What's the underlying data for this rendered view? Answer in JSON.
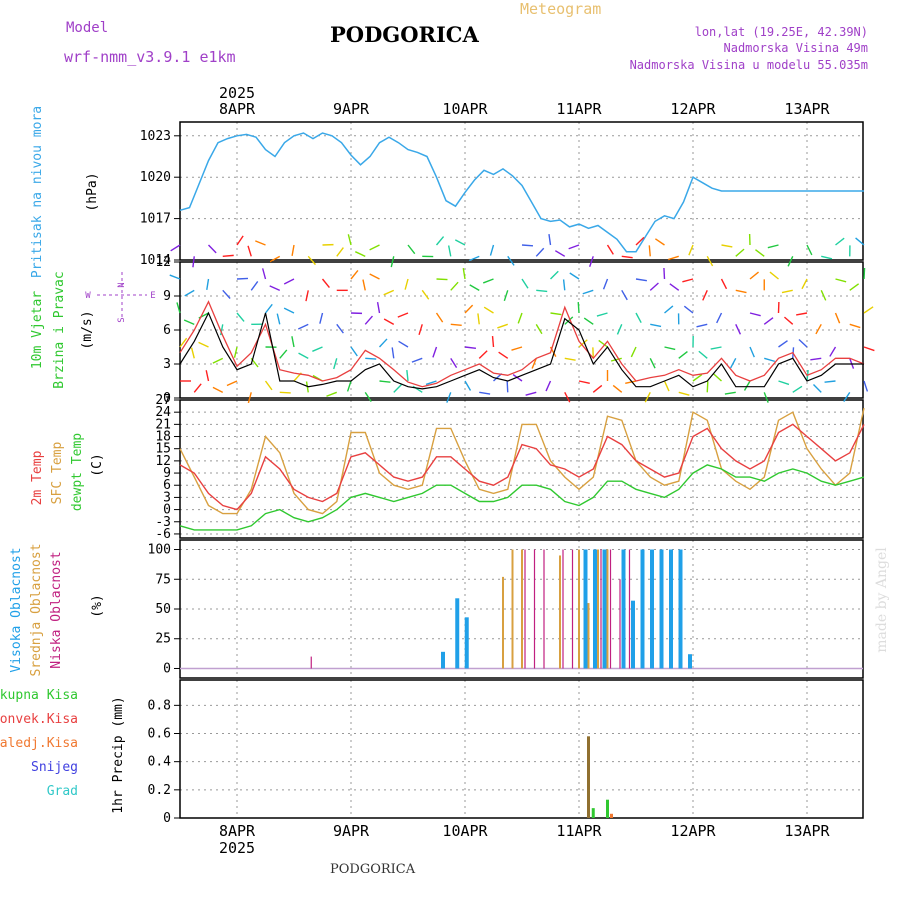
{
  "header": {
    "model_label": "Model",
    "model_name": "wrf-nmm_v3.9.1  e1km",
    "station": "PODGORICA",
    "meteogram": "Meteogram",
    "lonlat": "lon,lat (19.25E, 42.39N)",
    "altitude": "Nadmorska Visina 49m",
    "model_altitude": "Nadmorska Visina u modelu 55.035m",
    "footer_station": "PODGORICA",
    "watermark": "made by Angel"
  },
  "time_axis": {
    "year": "2025",
    "days": [
      "8APR",
      "9APR",
      "10APR",
      "11APR",
      "12APR",
      "13APR"
    ]
  },
  "colors": {
    "pressure": "#3aa8e8",
    "temp2m": "#e84040",
    "sfc_temp": "#d8a040",
    "dewpt": "#30c830",
    "high_cloud": "#20a0e8",
    "mid_cloud": "#d8a040",
    "low_cloud": "#c02080",
    "ukupna": "#30c830",
    "konvek": "#e84040",
    "zaledj": "#f07830",
    "snijeg": "#4040e0",
    "grad": "#30c8c8",
    "model_label": "#a040c8",
    "meteogram": "#e8c070"
  },
  "panels": {
    "pressure": {
      "ylabel1": "Pritisak na nivou mora",
      "ylabel2": "(hPa)",
      "ticks": [
        "1014",
        "1017",
        "1020",
        "1023"
      ]
    },
    "wind": {
      "ylabel1": "10m Vjetar",
      "ylabel2": "Brzina i Pravac",
      "ylabel3": "(m/s)",
      "ticks": [
        "0",
        "3",
        "6",
        "9",
        "12"
      ],
      "compass": {
        "n": "N",
        "s": "S",
        "e": "E",
        "w": "W"
      }
    },
    "temp": {
      "ylabel1": "2m Temp",
      "ylabel2": "SFC Temp",
      "ylabel3": "dewpt Temp",
      "ylabel4": "(C)",
      "ticks": [
        "-6",
        "-3",
        "0",
        "3",
        "6",
        "9",
        "12",
        "15",
        "18",
        "21",
        "24",
        "27"
      ]
    },
    "cloud": {
      "ylabel1": "Visoka Oblacnost",
      "ylabel2": "Srednja Oblacnost",
      "ylabel3": "Niska Oblacnost",
      "ylabel4": "(%)",
      "ticks": [
        "0",
        "25",
        "50",
        "75",
        "100"
      ]
    },
    "precip": {
      "legend": [
        "Ukupna Kisa",
        "Konvek.Kisa",
        "Zaledj.Kisa",
        "Snijeg",
        "Grad"
      ],
      "ylabel": "1hr Precip (mm)",
      "ticks": [
        "0",
        "0.2",
        "0.4",
        "0.6",
        "0.8"
      ]
    }
  },
  "chart_data": [
    {
      "type": "line",
      "title": "Pritisak na nivou mora",
      "ylabel": "(hPa)",
      "ylim": [
        1014,
        1024
      ],
      "x_hours": [
        0,
        2,
        4,
        6,
        8,
        10,
        12,
        14,
        16,
        18,
        20,
        22,
        24,
        26,
        28,
        30,
        32,
        34,
        36,
        38,
        40,
        42,
        44,
        46,
        48,
        50,
        52,
        54,
        56,
        58,
        60,
        62,
        64,
        66,
        68,
        70,
        72,
        74,
        76,
        78,
        80,
        82,
        84,
        86,
        88,
        90,
        92,
        94,
        96,
        98,
        100,
        102,
        104,
        106,
        108,
        110,
        112,
        114,
        116,
        118,
        120,
        122,
        124,
        126,
        128,
        130,
        132,
        134,
        136,
        138,
        140,
        142,
        144
      ],
      "series": [
        {
          "values": [
            1017.6,
            1017.8,
            1019.5,
            1021.2,
            1022.5,
            1022.8,
            1023.0,
            1023.1,
            1022.9,
            1022.0,
            1021.5,
            1022.5,
            1023.0,
            1023.2,
            1022.8,
            1023.2,
            1023.0,
            1022.5,
            1021.6,
            1020.9,
            1021.5,
            1022.5,
            1022.9,
            1022.5,
            1022.0,
            1021.8,
            1021.5,
            1020.0,
            1018.3,
            1017.9,
            1018.9,
            1019.8,
            1020.5,
            1020.2,
            1020.6,
            1020.1,
            1019.4,
            1018.2,
            1017.0,
            1016.8,
            1016.9,
            1016.4,
            1016.6,
            1016.3,
            1016.5,
            1016.0,
            1015.5,
            1014.6,
            1014.6,
            1015.7,
            1016.8,
            1017.2,
            1017.0,
            1018.2,
            1020.0,
            1019.6,
            1019.2,
            1019.0,
            1019.0,
            1019.0,
            1019.0,
            1019.0,
            1019.0,
            1019.0,
            1019.0,
            1019.0,
            1019.0,
            1019.0,
            1019.0,
            1019.0,
            1019.0,
            1019.0,
            1019.0
          ]
        }
      ]
    },
    {
      "type": "line",
      "title": "10m Vjetar Brzina i Pravac",
      "ylabel": "(m/s)",
      "ylim": [
        0,
        12
      ],
      "x_hours": [
        0,
        3,
        6,
        9,
        12,
        15,
        18,
        21,
        24,
        27,
        30,
        33,
        36,
        39,
        42,
        45,
        48,
        51,
        54,
        57,
        60,
        63,
        66,
        69,
        72,
        75,
        78,
        81,
        84,
        87,
        90,
        93,
        96,
        99,
        102,
        105,
        108,
        111,
        114,
        117,
        120,
        123,
        126,
        129,
        132,
        135,
        138,
        141,
        144
      ],
      "series": [
        {
          "values": [
            4.0,
            6.0,
            8.5,
            5.5,
            2.8,
            4.0,
            6.5,
            2.5,
            2.2,
            2.0,
            1.5,
            1.8,
            2.5,
            4.2,
            3.5,
            2.5,
            1.4,
            1.0,
            1.3,
            2.0,
            2.5,
            3.0,
            2.2,
            2.0,
            2.5,
            3.5,
            4.0,
            8.0,
            5.0,
            3.5,
            5.0,
            3.0,
            1.5,
            1.8,
            2.0,
            2.5,
            2.0,
            2.2,
            3.5,
            2.0,
            1.5,
            2.0,
            3.5,
            4.0,
            2.0,
            2.5,
            3.5,
            3.5,
            3.0
          ]
        },
        {
          "values": [
            3.0,
            5.0,
            7.5,
            4.5,
            2.5,
            3.0,
            7.5,
            1.5,
            1.5,
            1.0,
            1.2,
            1.5,
            1.5,
            2.5,
            3.0,
            1.5,
            1.0,
            0.8,
            1.0,
            1.5,
            2.0,
            2.5,
            1.8,
            1.5,
            2.0,
            2.5,
            3.0,
            7.0,
            6.0,
            3.0,
            4.5,
            2.5,
            1.0,
            1.0,
            1.5,
            2.0,
            1.0,
            1.5,
            3.0,
            1.0,
            1.0,
            1.0,
            3.0,
            3.5,
            1.5,
            2.0,
            3.0,
            3.0,
            3.0
          ]
        }
      ]
    },
    {
      "type": "line",
      "ylabel": "(C)",
      "ylim": [
        -7,
        27
      ],
      "x_hours": [
        0,
        3,
        6,
        9,
        12,
        15,
        18,
        21,
        24,
        27,
        30,
        33,
        36,
        39,
        42,
        45,
        48,
        51,
        54,
        57,
        60,
        63,
        66,
        69,
        72,
        75,
        78,
        81,
        84,
        87,
        90,
        93,
        96,
        99,
        102,
        105,
        108,
        111,
        114,
        117,
        120,
        123,
        126,
        129,
        132,
        135,
        138,
        141,
        144
      ],
      "series": [
        {
          "name": "2m Temp",
          "values": [
            11,
            9,
            4,
            1,
            0,
            4,
            13,
            10,
            5,
            3,
            2,
            4,
            13,
            14,
            11,
            8,
            7,
            8,
            13,
            13,
            10,
            7,
            6,
            8,
            16,
            15,
            11,
            10,
            8,
            10,
            18,
            16,
            12,
            10,
            8,
            9,
            18,
            20,
            15,
            12,
            10,
            12,
            19,
            21,
            18,
            15,
            12,
            14,
            21
          ]
        },
        {
          "name": "SFC Temp",
          "values": [
            15,
            8,
            1,
            -1,
            -1,
            5,
            18,
            14,
            4,
            0,
            -1,
            2,
            19,
            19,
            9,
            6,
            5,
            6,
            20,
            20,
            12,
            5,
            4,
            5,
            21,
            21,
            12,
            8,
            5,
            8,
            23,
            22,
            12,
            8,
            6,
            7,
            24,
            22,
            10,
            7,
            5,
            8,
            22,
            24,
            15,
            10,
            6,
            9,
            25
          ]
        },
        {
          "name": "dewpt Temp",
          "values": [
            -4,
            -5,
            -5,
            -5,
            -5,
            -4,
            -1,
            0,
            -2,
            -3,
            -2,
            0,
            3,
            4,
            3,
            2,
            3,
            4,
            6,
            6,
            4,
            2,
            2,
            3,
            6,
            6,
            5,
            2,
            1,
            3,
            7,
            7,
            5,
            4,
            3,
            5,
            9,
            11,
            10,
            8,
            8,
            7,
            9,
            10,
            9,
            7,
            6,
            7,
            8
          ]
        }
      ]
    },
    {
      "type": "bar",
      "ylabel": "(%)",
      "ylim": [
        0,
        100
      ],
      "x_hours": [
        27,
        56,
        59,
        61,
        66,
        68,
        70,
        72,
        74,
        76,
        78,
        80,
        82,
        84,
        86,
        88,
        90,
        92,
        94,
        96,
        98,
        100,
        102,
        104,
        106,
        108
      ],
      "series": [
        {
          "name": "Visoka Oblacnost",
          "values": [
            0,
            14,
            59,
            43,
            0,
            0,
            0,
            0,
            0,
            0,
            0,
            0,
            0,
            0,
            100,
            100,
            100,
            0,
            100,
            57,
            100,
            100,
            100,
            100,
            100,
            12
          ]
        },
        {
          "name": "Srednja Oblacnost",
          "values": [
            0,
            0,
            0,
            0,
            0,
            77,
            100,
            100,
            0,
            0,
            0,
            95,
            0,
            100,
            55,
            100,
            100,
            0,
            0,
            0,
            0,
            0,
            0,
            0,
            0,
            0
          ]
        },
        {
          "name": "Niska Oblacnost",
          "values": [
            10,
            0,
            0,
            0,
            0,
            0,
            0,
            100,
            100,
            100,
            0,
            100,
            100,
            0,
            0,
            100,
            100,
            75,
            100,
            0,
            0,
            0,
            0,
            0,
            0,
            0
          ]
        }
      ]
    },
    {
      "type": "bar",
      "ylabel": "1hr Precip (mm)",
      "ylim": [
        0,
        1.0
      ],
      "x_hours": [
        86,
        87,
        90
      ],
      "series": [
        {
          "name": "Ukupna Kisa",
          "values": [
            0.58,
            0.07,
            0.13
          ]
        },
        {
          "name": "Zaledj.Kisa",
          "values": [
            0.0,
            0.0,
            0.03
          ]
        }
      ]
    }
  ]
}
